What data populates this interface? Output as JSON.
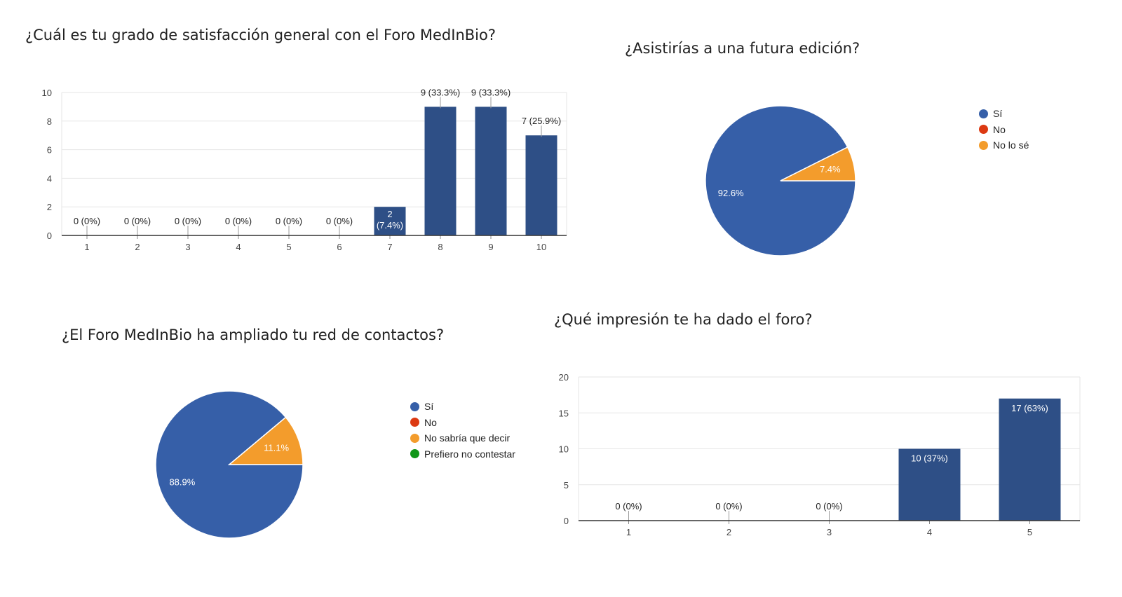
{
  "colors": {
    "blue": "#365fa8",
    "bar": "#2e4f86",
    "red": "#dc3912",
    "orange": "#f39c2c",
    "green": "#109618",
    "grid": "#e6e6e6",
    "axis": "#333333"
  },
  "chart_data": [
    {
      "id": "satisfaction",
      "type": "bar",
      "title": "¿Cuál es tu grado de satisfacción general con el Foro MedInBio?",
      "categories": [
        "1",
        "2",
        "3",
        "4",
        "5",
        "6",
        "7",
        "8",
        "9",
        "10"
      ],
      "values": [
        0,
        0,
        0,
        0,
        0,
        0,
        2,
        9,
        9,
        7
      ],
      "labels": [
        "0 (0%)",
        "0 (0%)",
        "0 (0%)",
        "0 (0%)",
        "0 (0%)",
        "0 (0%)",
        "2 (7.4%)",
        "9 (33.3%)",
        "9 (33.3%)",
        "7 (25.9%)"
      ],
      "yticks": [
        "0",
        "2",
        "4",
        "6",
        "8",
        "10"
      ],
      "ylim": [
        0,
        10
      ],
      "grid": true
    },
    {
      "id": "attend",
      "type": "pie",
      "title": "¿Asistirías a una futura edición?",
      "slices": [
        {
          "name": "Sí",
          "value": 92.6,
          "label": "92.6%",
          "color": "#365fa8"
        },
        {
          "name": "No",
          "value": 0,
          "label": "",
          "color": "#dc3912"
        },
        {
          "name": "No lo sé",
          "value": 7.4,
          "label": "7.4%",
          "color": "#f39c2c"
        }
      ],
      "legend_position": "right"
    },
    {
      "id": "network",
      "type": "pie",
      "title": "¿El Foro MedInBio ha ampliado tu red de contactos?",
      "slices": [
        {
          "name": "Sí",
          "value": 88.9,
          "label": "88.9%",
          "color": "#365fa8"
        },
        {
          "name": "No",
          "value": 0,
          "label": "",
          "color": "#dc3912"
        },
        {
          "name": "No sabría que decir",
          "value": 11.1,
          "label": "11.1%",
          "color": "#f39c2c"
        },
        {
          "name": "Prefiero no contestar",
          "value": 0,
          "label": "",
          "color": "#109618"
        }
      ],
      "legend_position": "right"
    },
    {
      "id": "impression",
      "type": "bar",
      "title": "¿Qué impresión te ha dado el foro?",
      "categories": [
        "1",
        "2",
        "3",
        "4",
        "5"
      ],
      "values": [
        0,
        0,
        0,
        10,
        17
      ],
      "labels": [
        "0 (0%)",
        "0 (0%)",
        "0 (0%)",
        "10 (37%)",
        "17 (63%)"
      ],
      "yticks": [
        "0",
        "5",
        "10",
        "15",
        "20"
      ],
      "ylim": [
        0,
        20
      ],
      "grid": true
    }
  ]
}
